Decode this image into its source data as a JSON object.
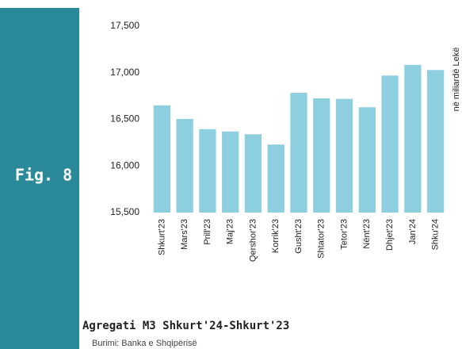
{
  "figure_label": "Fig. 8",
  "chart_data": {
    "type": "bar",
    "title": "Agregati M3 Shkurt'24-Shkurt'23",
    "source": "Burimi: Banka e Shqipërisë",
    "y_label": "në miliardë Lekë",
    "categories": [
      "Shkurt'23",
      "Mars'23",
      "Prill'23",
      "Maj'23",
      "Qershor'23",
      "Korrik'23",
      "Gusht'23",
      "Shtator'23",
      "Tetor'23",
      "Nënt'23",
      "Dhjet'23",
      "Jan'24",
      "Shku'24"
    ],
    "values": [
      16650,
      16505,
      16395,
      16370,
      16340,
      16230,
      16785,
      16725,
      16720,
      16630,
      16970,
      17085,
      17030
    ],
    "color": "#8ecfdf",
    "ylim": [
      15500,
      17500
    ],
    "yticks": [
      {
        "value": 15500,
        "label": "15,500"
      },
      {
        "value": 16000,
        "label": "16,000"
      },
      {
        "value": 16500,
        "label": "16,500"
      },
      {
        "value": 17000,
        "label": "17,000"
      },
      {
        "value": 17500,
        "label": "17,500"
      }
    ],
    "grid": false
  }
}
